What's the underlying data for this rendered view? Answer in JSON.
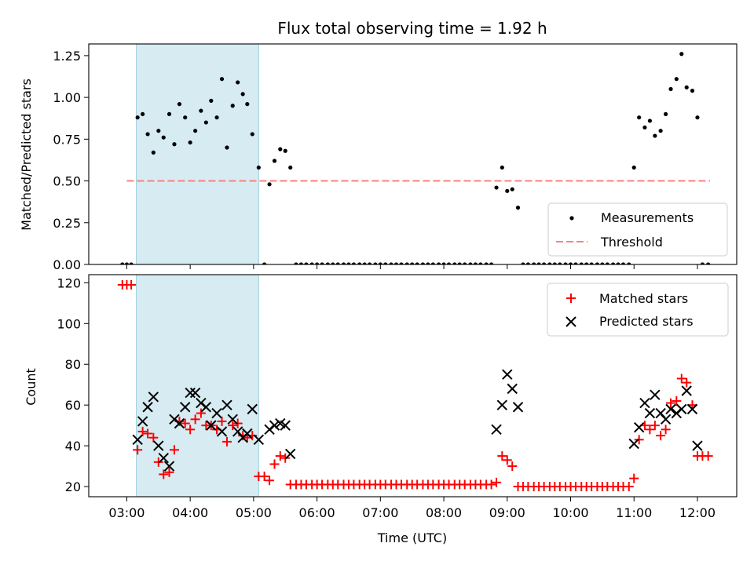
{
  "chart_data": {
    "type": "scatter",
    "title": "Flux total observing time = 1.92 h",
    "xlabel": "Time (UTC)",
    "x_ticks": [
      "03:00",
      "04:00",
      "05:00",
      "06:00",
      "07:00",
      "08:00",
      "09:00",
      "10:00",
      "11:00",
      "12:00"
    ],
    "x_range_hours": [
      2.4,
      12.62
    ],
    "highlight_span_hours": [
      3.15,
      5.08
    ],
    "colors": {
      "span": "#add8e6",
      "threshold": "#ff7f7f",
      "matched": "#ff0000",
      "predicted": "#000000",
      "measurement": "#000000"
    },
    "top": {
      "ylabel": "Matched/Predicted stars",
      "ylim": [
        0,
        1.32
      ],
      "yticks": [
        "0.00",
        "0.25",
        "0.50",
        "0.75",
        "1.00",
        "1.25"
      ],
      "threshold": {
        "value": 0.5,
        "x_range_hours": [
          3.0,
          12.2
        ]
      },
      "legend": {
        "placement": "lower-right",
        "entries": [
          "Measurements",
          "Threshold"
        ]
      },
      "ratio_points": [
        [
          2.93,
          0
        ],
        [
          3.0,
          0
        ],
        [
          3.07,
          0
        ],
        [
          3.17,
          0.88
        ],
        [
          3.25,
          0.9
        ],
        [
          3.33,
          0.78
        ],
        [
          3.42,
          0.67
        ],
        [
          3.5,
          0.8
        ],
        [
          3.58,
          0.76
        ],
        [
          3.67,
          0.9
        ],
        [
          3.75,
          0.72
        ],
        [
          3.83,
          0.96
        ],
        [
          3.92,
          0.88
        ],
        [
          4.0,
          0.73
        ],
        [
          4.08,
          0.8
        ],
        [
          4.17,
          0.92
        ],
        [
          4.25,
          0.85
        ],
        [
          4.33,
          0.98
        ],
        [
          4.42,
          0.88
        ],
        [
          4.5,
          1.11
        ],
        [
          4.58,
          0.7
        ],
        [
          4.67,
          0.95
        ],
        [
          4.75,
          1.09
        ],
        [
          4.83,
          1.02
        ],
        [
          4.9,
          0.96
        ],
        [
          4.98,
          0.78
        ],
        [
          5.08,
          0.58
        ],
        [
          5.17,
          0
        ],
        [
          5.25,
          0.48
        ],
        [
          5.33,
          0.62
        ],
        [
          5.42,
          0.69
        ],
        [
          5.5,
          0.68
        ],
        [
          5.58,
          0.58
        ],
        [
          5.67,
          0
        ],
        [
          5.75,
          0
        ],
        [
          5.83,
          0
        ],
        [
          5.92,
          0
        ],
        [
          6.0,
          0
        ],
        [
          6.08,
          0
        ],
        [
          6.17,
          0
        ],
        [
          6.25,
          0
        ],
        [
          6.33,
          0
        ],
        [
          6.42,
          0
        ],
        [
          6.5,
          0
        ],
        [
          6.58,
          0
        ],
        [
          6.67,
          0
        ],
        [
          6.75,
          0
        ],
        [
          6.83,
          0
        ],
        [
          6.92,
          0
        ],
        [
          7.0,
          0
        ],
        [
          7.08,
          0
        ],
        [
          7.17,
          0
        ],
        [
          7.25,
          0
        ],
        [
          7.33,
          0
        ],
        [
          7.42,
          0
        ],
        [
          7.5,
          0
        ],
        [
          7.58,
          0
        ],
        [
          7.67,
          0
        ],
        [
          7.75,
          0
        ],
        [
          7.83,
          0
        ],
        [
          7.92,
          0
        ],
        [
          8.0,
          0
        ],
        [
          8.08,
          0
        ],
        [
          8.17,
          0
        ],
        [
          8.25,
          0
        ],
        [
          8.33,
          0
        ],
        [
          8.42,
          0
        ],
        [
          8.5,
          0
        ],
        [
          8.58,
          0
        ],
        [
          8.67,
          0
        ],
        [
          8.75,
          0
        ],
        [
          8.83,
          0.46
        ],
        [
          8.92,
          0.58
        ],
        [
          9.0,
          0.44
        ],
        [
          9.08,
          0.45
        ],
        [
          9.17,
          0.34
        ],
        [
          9.25,
          0
        ],
        [
          9.33,
          0
        ],
        [
          9.42,
          0
        ],
        [
          9.5,
          0
        ],
        [
          9.58,
          0
        ],
        [
          9.67,
          0
        ],
        [
          9.75,
          0
        ],
        [
          9.83,
          0
        ],
        [
          9.92,
          0
        ],
        [
          10.0,
          0
        ],
        [
          10.08,
          0
        ],
        [
          10.17,
          0
        ],
        [
          10.25,
          0
        ],
        [
          10.33,
          0
        ],
        [
          10.42,
          0
        ],
        [
          10.5,
          0
        ],
        [
          10.58,
          0
        ],
        [
          10.67,
          0
        ],
        [
          10.75,
          0
        ],
        [
          10.83,
          0
        ],
        [
          10.92,
          0
        ],
        [
          11.0,
          0.58
        ],
        [
          11.08,
          0.88
        ],
        [
          11.17,
          0.82
        ],
        [
          11.25,
          0.86
        ],
        [
          11.33,
          0.77
        ],
        [
          11.42,
          0.8
        ],
        [
          11.5,
          0.9
        ],
        [
          11.58,
          1.05
        ],
        [
          11.67,
          1.11
        ],
        [
          11.75,
          1.26
        ],
        [
          11.83,
          1.06
        ],
        [
          11.92,
          1.04
        ],
        [
          12.0,
          0.88
        ],
        [
          12.08,
          0
        ],
        [
          12.17,
          0
        ]
      ]
    },
    "bottom": {
      "ylabel": "Count",
      "ylim": [
        15,
        124
      ],
      "yticks": [
        "20",
        "40",
        "60",
        "80",
        "100",
        "120"
      ],
      "legend": {
        "placement": "upper-right",
        "entries": [
          "Matched stars",
          "Predicted stars"
        ]
      },
      "matched": [
        [
          2.93,
          119
        ],
        [
          3.0,
          119
        ],
        [
          3.07,
          119
        ],
        [
          3.17,
          38
        ],
        [
          3.25,
          47
        ],
        [
          3.33,
          46
        ],
        [
          3.42,
          44
        ],
        [
          3.5,
          32
        ],
        [
          3.58,
          26
        ],
        [
          3.67,
          27
        ],
        [
          3.75,
          38
        ],
        [
          3.83,
          52
        ],
        [
          3.92,
          51
        ],
        [
          4.0,
          48
        ],
        [
          4.08,
          53
        ],
        [
          4.17,
          56
        ],
        [
          4.25,
          50
        ],
        [
          4.33,
          50
        ],
        [
          4.42,
          48
        ],
        [
          4.5,
          52
        ],
        [
          4.58,
          42
        ],
        [
          4.67,
          50
        ],
        [
          4.75,
          51
        ],
        [
          4.83,
          45
        ],
        [
          4.9,
          44
        ],
        [
          4.98,
          45
        ],
        [
          5.08,
          25
        ],
        [
          5.17,
          25
        ],
        [
          5.25,
          23
        ],
        [
          5.33,
          31
        ],
        [
          5.42,
          35
        ],
        [
          5.5,
          34
        ],
        [
          5.58,
          21
        ],
        [
          5.67,
          21
        ],
        [
          5.75,
          21
        ],
        [
          5.83,
          21
        ],
        [
          5.92,
          21
        ],
        [
          6.0,
          21
        ],
        [
          6.08,
          21
        ],
        [
          6.17,
          21
        ],
        [
          6.25,
          21
        ],
        [
          6.33,
          21
        ],
        [
          6.42,
          21
        ],
        [
          6.5,
          21
        ],
        [
          6.58,
          21
        ],
        [
          6.67,
          21
        ],
        [
          6.75,
          21
        ],
        [
          6.83,
          21
        ],
        [
          6.92,
          21
        ],
        [
          7.0,
          21
        ],
        [
          7.08,
          21
        ],
        [
          7.17,
          21
        ],
        [
          7.25,
          21
        ],
        [
          7.33,
          21
        ],
        [
          7.42,
          21
        ],
        [
          7.5,
          21
        ],
        [
          7.58,
          21
        ],
        [
          7.67,
          21
        ],
        [
          7.75,
          21
        ],
        [
          7.83,
          21
        ],
        [
          7.92,
          21
        ],
        [
          8.0,
          21
        ],
        [
          8.08,
          21
        ],
        [
          8.17,
          21
        ],
        [
          8.25,
          21
        ],
        [
          8.33,
          21
        ],
        [
          8.42,
          21
        ],
        [
          8.5,
          21
        ],
        [
          8.58,
          21
        ],
        [
          8.67,
          21
        ],
        [
          8.75,
          21
        ],
        [
          8.83,
          22
        ],
        [
          8.92,
          35
        ],
        [
          9.0,
          33
        ],
        [
          9.08,
          30
        ],
        [
          9.17,
          20
        ],
        [
          9.25,
          20
        ],
        [
          9.33,
          20
        ],
        [
          9.42,
          20
        ],
        [
          9.5,
          20
        ],
        [
          9.58,
          20
        ],
        [
          9.67,
          20
        ],
        [
          9.75,
          20
        ],
        [
          9.83,
          20
        ],
        [
          9.92,
          20
        ],
        [
          10.0,
          20
        ],
        [
          10.08,
          20
        ],
        [
          10.17,
          20
        ],
        [
          10.25,
          20
        ],
        [
          10.33,
          20
        ],
        [
          10.42,
          20
        ],
        [
          10.5,
          20
        ],
        [
          10.58,
          20
        ],
        [
          10.67,
          20
        ],
        [
          10.75,
          20
        ],
        [
          10.83,
          20
        ],
        [
          10.92,
          20
        ],
        [
          11.0,
          24
        ],
        [
          11.08,
          43
        ],
        [
          11.17,
          50
        ],
        [
          11.25,
          48
        ],
        [
          11.33,
          50
        ],
        [
          11.42,
          45
        ],
        [
          11.5,
          48
        ],
        [
          11.58,
          61
        ],
        [
          11.67,
          62
        ],
        [
          11.75,
          73
        ],
        [
          11.83,
          71
        ],
        [
          11.92,
          60
        ],
        [
          12.0,
          35
        ],
        [
          12.08,
          35
        ],
        [
          12.17,
          35
        ]
      ],
      "predicted": [
        [
          3.17,
          43
        ],
        [
          3.25,
          52
        ],
        [
          3.33,
          59
        ],
        [
          3.42,
          64
        ],
        [
          3.5,
          40
        ],
        [
          3.58,
          34
        ],
        [
          3.67,
          30
        ],
        [
          3.75,
          53
        ],
        [
          3.83,
          51
        ],
        [
          3.92,
          59
        ],
        [
          4.0,
          66
        ],
        [
          4.08,
          66
        ],
        [
          4.17,
          61
        ],
        [
          4.25,
          59
        ],
        [
          4.33,
          50
        ],
        [
          4.42,
          56
        ],
        [
          4.5,
          47
        ],
        [
          4.58,
          60
        ],
        [
          4.67,
          53
        ],
        [
          4.75,
          47
        ],
        [
          4.83,
          44
        ],
        [
          4.9,
          46
        ],
        [
          4.98,
          58
        ],
        [
          5.08,
          43
        ],
        [
          5.25,
          48
        ],
        [
          5.33,
          50
        ],
        [
          5.42,
          51
        ],
        [
          5.5,
          50
        ],
        [
          5.58,
          36
        ],
        [
          8.83,
          48
        ],
        [
          8.92,
          60
        ],
        [
          9.0,
          75
        ],
        [
          9.08,
          68
        ],
        [
          9.17,
          59
        ],
        [
          11.0,
          41
        ],
        [
          11.08,
          49
        ],
        [
          11.17,
          61
        ],
        [
          11.25,
          56
        ],
        [
          11.33,
          65
        ],
        [
          11.42,
          56
        ],
        [
          11.5,
          53
        ],
        [
          11.58,
          58
        ],
        [
          11.67,
          56
        ],
        [
          11.75,
          58
        ],
        [
          11.83,
          67
        ],
        [
          11.92,
          58
        ],
        [
          12.0,
          40
        ]
      ]
    }
  }
}
